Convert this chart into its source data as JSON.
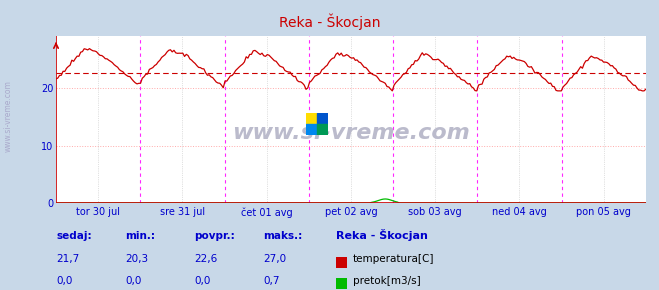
{
  "title": "Reka - Škocjan",
  "background_color": "#c8d8e8",
  "plot_bg_color": "#ffffff",
  "ylim": [
    0,
    28
  ],
  "yticks": [
    0,
    10,
    20
  ],
  "x_labels": [
    "tor 30 jul",
    "sre 31 jul",
    "čet 01 avg",
    "pet 02 avg",
    "sob 03 avg",
    "ned 04 avg",
    "pon 05 avg"
  ],
  "avg_line": 22.6,
  "avg_line_color": "#cc0000",
  "temp_color": "#cc0000",
  "flow_color": "#00bb00",
  "watermark": "www.si-vreme.com",
  "sedaj_label": "sedaj:",
  "min_label": "min.:",
  "povpr_label": "povpr.:",
  "maks_label": "maks.:",
  "station_label": "Reka - Škocjan",
  "sedaj_temp": "21,7",
  "min_temp": "20,3",
  "povpr_temp": "22,6",
  "maks_temp": "27,0",
  "sedaj_flow": "0,0",
  "min_flow": "0,0",
  "povpr_flow": "0,0",
  "maks_flow": "0,7",
  "legend_temp": "temperatura[C]",
  "legend_flow": "pretok[m3/s]",
  "n_points": 336,
  "temp_min": 20.3,
  "temp_max": 27.0,
  "temp_avg": 22.6,
  "flow_max": 0.7,
  "label_color": "#0000cc",
  "title_color": "#cc0000",
  "axis_color": "#cc0000",
  "grid_color": "#dddddd",
  "grid_color_h": "#ffaaaa",
  "vline_color_day": "#ff00ff",
  "vline_color_half": "#aaaaaa",
  "watermark_color": "#bbbbcc",
  "sidebar_color": "#aaaacc"
}
